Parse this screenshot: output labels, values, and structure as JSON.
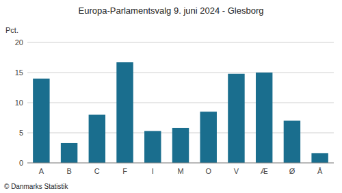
{
  "chart_data": {
    "type": "bar",
    "title": "Europa-Parlamentsvalg 9. juni 2024 - Glesborg",
    "categories": [
      "A",
      "B",
      "C",
      "F",
      "I",
      "M",
      "O",
      "V",
      "Æ",
      "Ø",
      "Å"
    ],
    "values": [
      14.0,
      3.3,
      8.0,
      16.7,
      5.3,
      5.8,
      8.5,
      14.8,
      15.0,
      7.0,
      1.6
    ],
    "color": "#1a6e8e",
    "ylabel": "Pct.",
    "ylim": [
      0,
      20
    ],
    "yticks": [
      0,
      5,
      10,
      15,
      20
    ],
    "grid": true,
    "footnote": "© Danmarks Statistik"
  }
}
